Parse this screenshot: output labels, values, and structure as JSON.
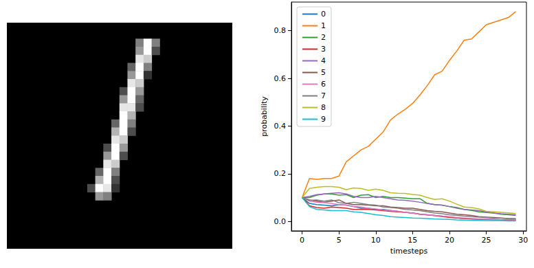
{
  "chart_data": [
    {
      "type": "heatmap",
      "tick_labels": false,
      "shape": [
        28,
        28
      ],
      "value_range": [
        0,
        1
      ],
      "cells": [
        [
          16,
          2,
          0.5
        ],
        [
          17,
          2,
          1.0
        ],
        [
          18,
          2,
          0.5
        ],
        [
          16,
          3,
          0.6
        ],
        [
          17,
          3,
          1.0
        ],
        [
          18,
          3,
          0.3
        ],
        [
          16,
          4,
          0.9
        ],
        [
          17,
          4,
          0.8
        ],
        [
          15,
          5,
          0.4
        ],
        [
          16,
          5,
          1.0
        ],
        [
          17,
          5,
          0.5
        ],
        [
          15,
          6,
          0.6
        ],
        [
          16,
          6,
          1.0
        ],
        [
          17,
          6,
          0.2
        ],
        [
          15,
          7,
          0.9
        ],
        [
          16,
          7,
          0.8
        ],
        [
          14,
          8,
          0.3
        ],
        [
          15,
          8,
          1.0
        ],
        [
          16,
          8,
          0.6
        ],
        [
          14,
          9,
          0.6
        ],
        [
          15,
          9,
          1.0
        ],
        [
          16,
          9,
          0.4
        ],
        [
          14,
          10,
          0.9
        ],
        [
          15,
          10,
          0.9
        ],
        [
          16,
          10,
          0.3
        ],
        [
          14,
          11,
          1.0
        ],
        [
          15,
          11,
          0.7
        ],
        [
          13,
          12,
          0.4
        ],
        [
          14,
          12,
          1.0
        ],
        [
          15,
          12,
          0.5
        ],
        [
          13,
          13,
          0.7
        ],
        [
          14,
          13,
          1.0
        ],
        [
          15,
          13,
          0.3
        ],
        [
          13,
          14,
          0.9
        ],
        [
          14,
          14,
          0.8
        ],
        [
          12,
          15,
          0.3
        ],
        [
          13,
          15,
          1.0
        ],
        [
          14,
          15,
          0.6
        ],
        [
          12,
          16,
          0.6
        ],
        [
          13,
          16,
          1.0
        ],
        [
          14,
          16,
          0.3
        ],
        [
          12,
          17,
          0.9
        ],
        [
          13,
          17,
          0.8
        ],
        [
          11,
          18,
          0.4
        ],
        [
          12,
          18,
          1.0
        ],
        [
          13,
          18,
          0.5
        ],
        [
          11,
          19,
          0.7
        ],
        [
          12,
          19,
          1.0
        ],
        [
          13,
          19,
          0.3
        ],
        [
          10,
          20,
          0.3
        ],
        [
          11,
          20,
          1.0
        ],
        [
          12,
          20,
          0.9
        ],
        [
          13,
          20,
          0.2
        ],
        [
          11,
          21,
          0.6
        ],
        [
          12,
          21,
          0.5
        ]
      ]
    },
    {
      "type": "line",
      "x_label": "timesteps",
      "y_label": "probability",
      "grid": false,
      "legend": "upper left",
      "xlim": [
        -1.45,
        30.45
      ],
      "xticks": [
        0,
        5,
        10,
        15,
        20,
        25,
        30
      ],
      "ylim": [
        -0.04,
        0.92
      ],
      "yticks": [
        {
          "value": 0,
          "label": "0.0"
        },
        {
          "value": 0.2,
          "label": "0.2"
        },
        {
          "value": 0.4,
          "label": "0.4"
        },
        {
          "value": 0.6,
          "label": "0.6"
        },
        {
          "value": 0.8,
          "label": "0.8"
        }
      ],
      "x": [
        0,
        1,
        2,
        3,
        4,
        5,
        6,
        7,
        8,
        9,
        10,
        11,
        12,
        13,
        14,
        15,
        16,
        17,
        18,
        19,
        20,
        21,
        22,
        23,
        24,
        25,
        26,
        27,
        28,
        29
      ],
      "series": [
        {
          "name": "0",
          "color": "#1f77b4",
          "values": [
            0.1,
            0.075,
            0.07,
            0.068,
            0.065,
            0.07,
            0.068,
            0.062,
            0.055,
            0.055,
            0.05,
            0.05,
            0.046,
            0.042,
            0.038,
            0.035,
            0.03,
            0.028,
            0.025,
            0.022,
            0.018,
            0.015,
            0.012,
            0.011,
            0.01,
            0.009,
            0.008,
            0.007,
            0.006,
            0.006
          ]
        },
        {
          "name": "1",
          "color": "#ff7f0e",
          "values": [
            0.1,
            0.18,
            0.176,
            0.18,
            0.18,
            0.19,
            0.25,
            0.275,
            0.3,
            0.315,
            0.345,
            0.375,
            0.425,
            0.45,
            0.47,
            0.495,
            0.53,
            0.57,
            0.615,
            0.63,
            0.675,
            0.715,
            0.76,
            0.765,
            0.795,
            0.825,
            0.835,
            0.845,
            0.855,
            0.88
          ]
        },
        {
          "name": "2",
          "color": "#2ca02c",
          "values": [
            0.1,
            0.1,
            0.11,
            0.115,
            0.115,
            0.11,
            0.112,
            0.1,
            0.11,
            0.112,
            0.1,
            0.105,
            0.1,
            0.1,
            0.098,
            0.095,
            0.095,
            0.075,
            0.07,
            0.068,
            0.062,
            0.058,
            0.05,
            0.046,
            0.04,
            0.037,
            0.035,
            0.03,
            0.028,
            0.025
          ]
        },
        {
          "name": "3",
          "color": "#d62728",
          "values": [
            0.1,
            0.065,
            0.058,
            0.055,
            0.06,
            0.058,
            0.055,
            0.05,
            0.05,
            0.05,
            0.048,
            0.045,
            0.042,
            0.04,
            0.038,
            0.035,
            0.03,
            0.027,
            0.024,
            0.02,
            0.017,
            0.014,
            0.012,
            0.01,
            0.009,
            0.008,
            0.007,
            0.006,
            0.005,
            0.005
          ]
        },
        {
          "name": "4",
          "color": "#9467bd",
          "values": [
            0.1,
            0.105,
            0.112,
            0.115,
            0.118,
            0.12,
            0.115,
            0.105,
            0.1,
            0.1,
            0.105,
            0.1,
            0.095,
            0.09,
            0.088,
            0.085,
            0.08,
            0.075,
            0.07,
            0.068,
            0.062,
            0.055,
            0.05,
            0.048,
            0.045,
            0.04,
            0.035,
            0.032,
            0.03,
            0.028
          ]
        },
        {
          "name": "5",
          "color": "#8c564b",
          "values": [
            0.1,
            0.09,
            0.085,
            0.08,
            0.085,
            0.09,
            0.075,
            0.07,
            0.07,
            0.068,
            0.065,
            0.065,
            0.06,
            0.058,
            0.055,
            0.055,
            0.05,
            0.045,
            0.042,
            0.04,
            0.035,
            0.03,
            0.028,
            0.025,
            0.02,
            0.018,
            0.016,
            0.014,
            0.012,
            0.011
          ]
        },
        {
          "name": "6",
          "color": "#e377c2",
          "values": [
            0.1,
            0.085,
            0.08,
            0.078,
            0.075,
            0.07,
            0.068,
            0.062,
            0.06,
            0.055,
            0.052,
            0.048,
            0.045,
            0.042,
            0.038,
            0.035,
            0.03,
            0.028,
            0.025,
            0.022,
            0.02,
            0.016,
            0.014,
            0.012,
            0.01,
            0.009,
            0.008,
            0.007,
            0.006,
            0.006
          ]
        },
        {
          "name": "7",
          "color": "#7f7f7f",
          "values": [
            0.1,
            0.088,
            0.09,
            0.085,
            0.09,
            0.078,
            0.075,
            0.08,
            0.075,
            0.07,
            0.068,
            0.06,
            0.058,
            0.055,
            0.05,
            0.048,
            0.045,
            0.04,
            0.035,
            0.032,
            0.028,
            0.025,
            0.022,
            0.02,
            0.018,
            0.016,
            0.014,
            0.013,
            0.012,
            0.011
          ]
        },
        {
          "name": "8",
          "color": "#bcbd22",
          "values": [
            0.1,
            0.138,
            0.143,
            0.146,
            0.146,
            0.143,
            0.133,
            0.14,
            0.138,
            0.13,
            0.135,
            0.13,
            0.12,
            0.118,
            0.117,
            0.113,
            0.11,
            0.1,
            0.092,
            0.095,
            0.085,
            0.072,
            0.06,
            0.058,
            0.052,
            0.042,
            0.04,
            0.038,
            0.036,
            0.033
          ]
        },
        {
          "name": "9",
          "color": "#17becf",
          "values": [
            0.1,
            0.062,
            0.05,
            0.048,
            0.045,
            0.045,
            0.045,
            0.04,
            0.038,
            0.033,
            0.028,
            0.025,
            0.02,
            0.018,
            0.016,
            0.014,
            0.013,
            0.012,
            0.01,
            0.009,
            0.008,
            0.006,
            0.005,
            0.004,
            0.004,
            0.003,
            0.003,
            0.003,
            0.002,
            0.002
          ]
        }
      ]
    }
  ]
}
